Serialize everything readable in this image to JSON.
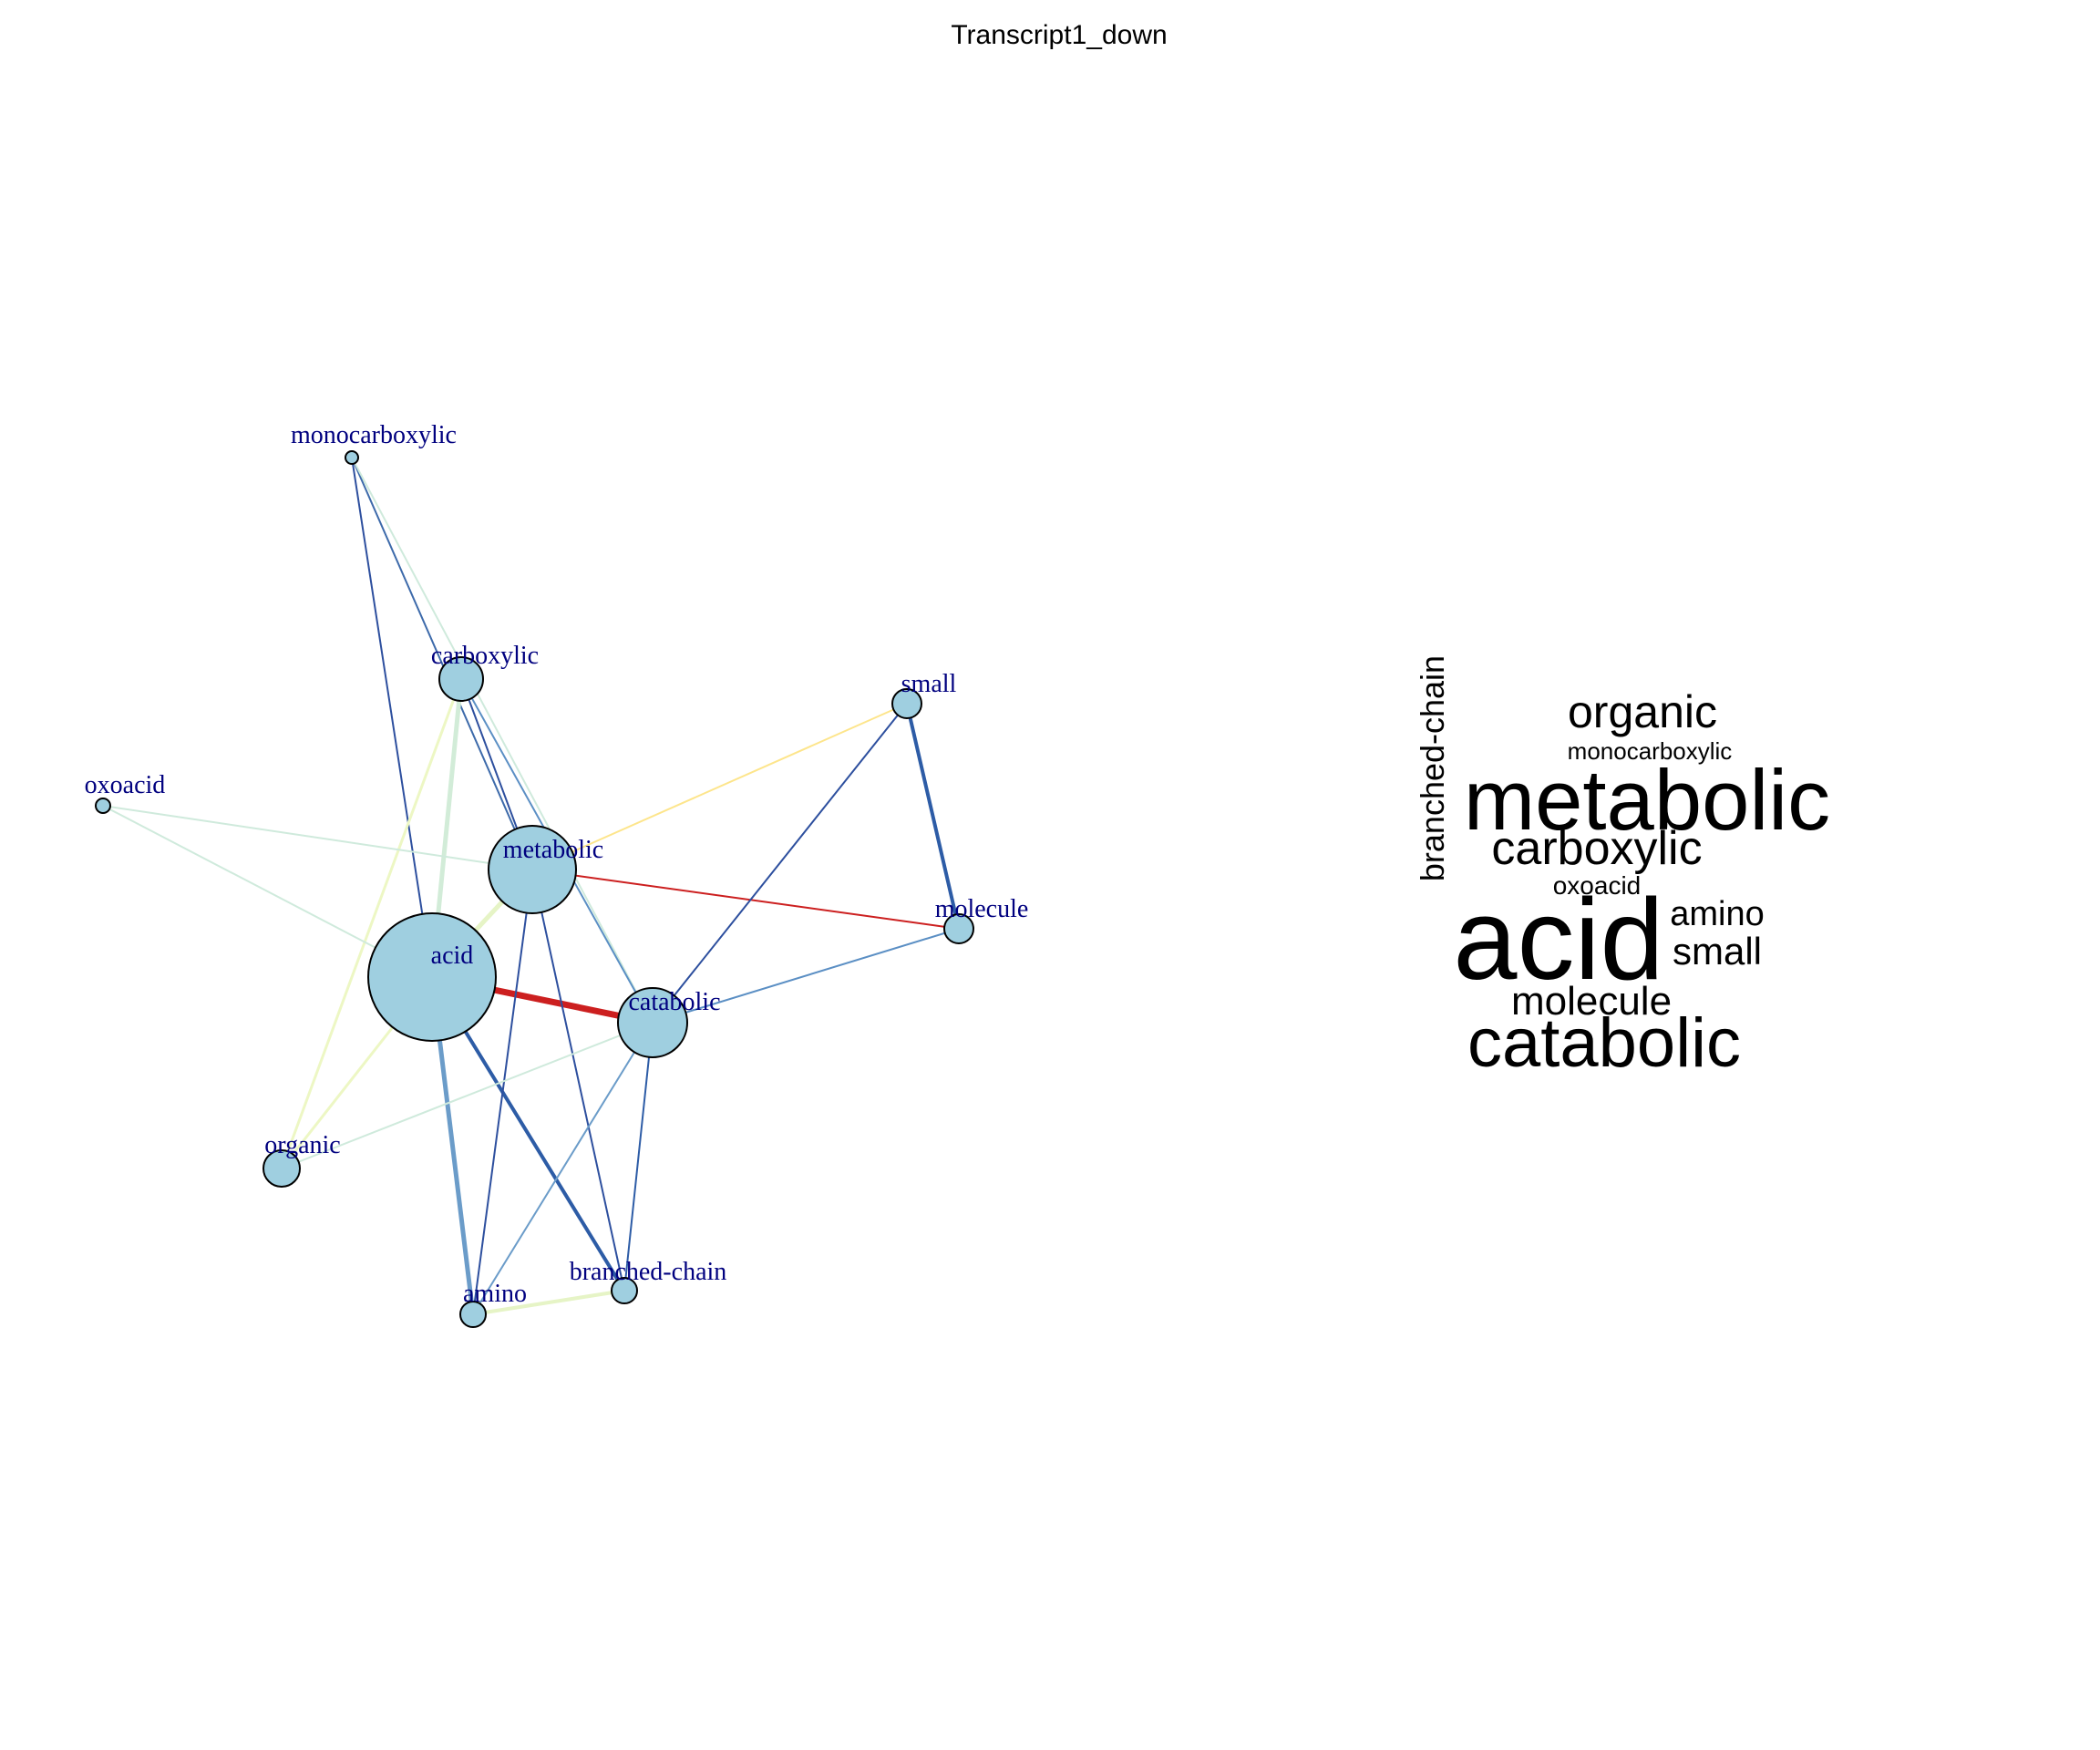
{
  "title": "Transcript1_down",
  "colors": {
    "node_fill": "#9fcfe0",
    "node_stroke": "#000000",
    "label": "#00007f"
  },
  "network": {
    "nodes": [
      {
        "id": "acid",
        "label": "acid"
      },
      {
        "id": "metabolic",
        "label": "metabolic"
      },
      {
        "id": "catabolic",
        "label": "catabolic"
      },
      {
        "id": "carboxylic",
        "label": "carboxylic"
      },
      {
        "id": "small",
        "label": "small"
      },
      {
        "id": "molecule",
        "label": "molecule"
      },
      {
        "id": "organic",
        "label": "organic"
      },
      {
        "id": "amino",
        "label": "amino"
      },
      {
        "id": "branched-chain",
        "label": "branched-chain"
      },
      {
        "id": "oxoacid",
        "label": "oxoacid"
      },
      {
        "id": "monocarboxylic",
        "label": "monocarboxylic"
      }
    ],
    "edges": [
      {
        "source": "acid",
        "target": "catabolic",
        "color": "#cc1f1f"
      },
      {
        "source": "metabolic",
        "target": "molecule",
        "color": "#cc1f1f"
      },
      {
        "source": "small",
        "target": "metabolic",
        "color": "#fde58b"
      },
      {
        "source": "small",
        "target": "molecule",
        "color": "#2d5ca6"
      },
      {
        "source": "small",
        "target": "catabolic",
        "color": "#2d4f9e"
      },
      {
        "source": "monocarboxylic",
        "target": "acid",
        "color": "#2d4f9e"
      },
      {
        "source": "monocarboxylic",
        "target": "metabolic",
        "color": "#3d6aaa"
      },
      {
        "source": "monocarboxylic",
        "target": "catabolic",
        "color": "#cfeadc"
      },
      {
        "source": "carboxylic",
        "target": "metabolic",
        "color": "#2d4f9e"
      },
      {
        "source": "carboxylic",
        "target": "catabolic",
        "color": "#5b8fc4"
      },
      {
        "source": "carboxylic",
        "target": "acid",
        "color": "#d2ecd8"
      },
      {
        "source": "carboxylic",
        "target": "organic",
        "color": "#edf7c4"
      },
      {
        "source": "oxoacid",
        "target": "metabolic",
        "color": "#cfeadc"
      },
      {
        "source": "oxoacid",
        "target": "acid",
        "color": "#cfeadc"
      },
      {
        "source": "acid",
        "target": "branched-chain",
        "color": "#2d5ca6"
      },
      {
        "source": "acid",
        "target": "amino",
        "color": "#6b9cc9"
      },
      {
        "source": "acid",
        "target": "organic",
        "color": "#edf7c4"
      },
      {
        "source": "acid",
        "target": "metabolic",
        "color": "#e6f4c6"
      },
      {
        "source": "metabolic",
        "target": "amino",
        "color": "#2d4f9e"
      },
      {
        "source": "metabolic",
        "target": "branched-chain",
        "color": "#2d4f9e"
      },
      {
        "source": "catabolic",
        "target": "molecule",
        "color": "#5b8fc4"
      },
      {
        "source": "catabolic",
        "target": "branched-chain",
        "color": "#2d5ca6"
      },
      {
        "source": "catabolic",
        "target": "amino",
        "color": "#6b9cc9"
      },
      {
        "source": "catabolic",
        "target": "organic",
        "color": "#cfeadc"
      },
      {
        "source": "amino",
        "target": "branched-chain",
        "color": "#e6f4c6"
      }
    ]
  },
  "wordcloud": {
    "words": [
      {
        "text": "organic"
      },
      {
        "text": "monocarboxylic"
      },
      {
        "text": "metabolic"
      },
      {
        "text": "carboxylic"
      },
      {
        "text": "oxoacid"
      },
      {
        "text": "amino"
      },
      {
        "text": "acid"
      },
      {
        "text": "small"
      },
      {
        "text": "molecule"
      },
      {
        "text": "catabolic"
      },
      {
        "text": "branched-chain"
      }
    ]
  }
}
